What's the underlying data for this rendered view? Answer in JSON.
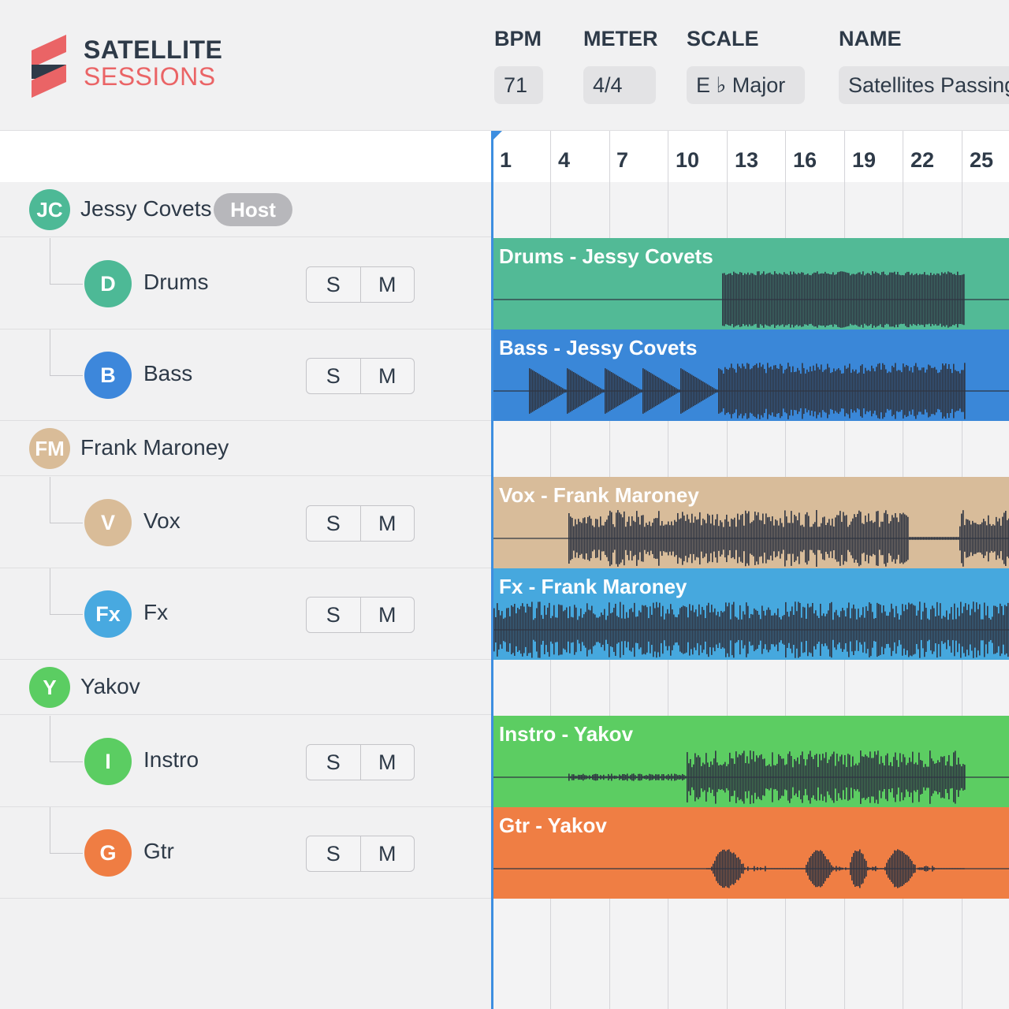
{
  "brand": {
    "line1": "SATELLITE",
    "line2": "SESSIONS",
    "mark_colors": [
      "#ea6466",
      "#2e3a48"
    ]
  },
  "header": {
    "bpm": {
      "label": "BPM",
      "value": "71"
    },
    "meter": {
      "label": "METER",
      "value": "4/4"
    },
    "scale": {
      "label": "SCALE",
      "value": "E ♭ Major"
    },
    "name": {
      "label": "NAME",
      "value": "Satellites Passing"
    }
  },
  "timeline": {
    "bars": [
      "1",
      "4",
      "7",
      "10",
      "13",
      "16",
      "19",
      "22",
      "25"
    ],
    "playhead_color": "#3d8ee0"
  },
  "users": [
    {
      "initials": "JC",
      "name": "Jessy Covets",
      "badge": "Host",
      "color": "#4db996",
      "tracks": [
        {
          "initial": "D",
          "name": "Drums",
          "color": "#4db996",
          "region_title": "Drums - Jessy Covets",
          "region_color": "#52ba96",
          "solo": "S",
          "mute": "M"
        },
        {
          "initial": "B",
          "name": "Bass",
          "color": "#3d87db",
          "region_title": "Bass - Jessy Covets",
          "region_color": "#3a87d8",
          "solo": "S",
          "mute": "M"
        }
      ]
    },
    {
      "initials": "FM",
      "name": "Frank Maroney",
      "badge": "",
      "color": "#d9bc98",
      "tracks": [
        {
          "initial": "V",
          "name": "Vox",
          "color": "#d9bc98",
          "region_title": "Vox - Frank Maroney",
          "region_color": "#d8bc9a",
          "solo": "S",
          "mute": "M"
        },
        {
          "initial": "Fx",
          "name": "Fx",
          "color": "#48a9e0",
          "region_title": "Fx - Frank Maroney",
          "region_color": "#46a8de",
          "solo": "S",
          "mute": "M"
        }
      ]
    },
    {
      "initials": "Y",
      "name": "Yakov",
      "badge": "",
      "color": "#5bcd62",
      "tracks": [
        {
          "initial": "I",
          "name": "Instro",
          "color": "#5bcd62",
          "region_title": "Instro - Yakov",
          "region_color": "#5ccd62",
          "solo": "S",
          "mute": "M"
        },
        {
          "initial": "G",
          "name": "Gtr",
          "color": "#ef7d43",
          "region_title": "Gtr - Yakov",
          "region_color": "#ef7e44",
          "solo": "S",
          "mute": "M"
        }
      ]
    }
  ]
}
